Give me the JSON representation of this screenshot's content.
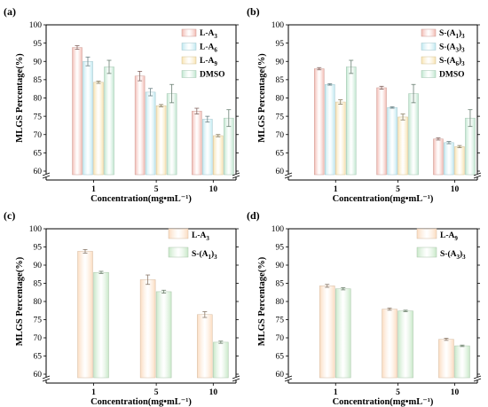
{
  "chart_data": [
    {
      "panel": "(a)",
      "type": "bar",
      "categories": [
        "1",
        "5",
        "10"
      ],
      "series": [
        {
          "name": "L-A",
          "sub": "3",
          "color": "#f2b9b1",
          "values": [
            93.8,
            86.0,
            76.4
          ],
          "errors": [
            0.5,
            1.3,
            0.8
          ]
        },
        {
          "name": "L-A",
          "sub": "6",
          "color": "#bfe8f0",
          "values": [
            90.0,
            81.6,
            74.2
          ],
          "errors": [
            1.2,
            1.0,
            0.8
          ]
        },
        {
          "name": "L-A",
          "sub": "9",
          "color": "#f8e3b0",
          "values": [
            84.3,
            77.9,
            69.7
          ],
          "errors": [
            0.3,
            0.3,
            0.3
          ]
        },
        {
          "name": "DMSO",
          "sub": "",
          "color": "#bfe6cf",
          "values": [
            88.5,
            81.2,
            74.5
          ],
          "errors": [
            1.8,
            2.5,
            2.3
          ]
        }
      ],
      "xlabel": "Concentration(mg•mL⁻¹)",
      "ylabel": "MLGS Percentage(%)",
      "ylim": [
        60,
        100
      ],
      "yticks": [
        "60",
        "65",
        "70",
        "75",
        "80",
        "85",
        "90",
        "95",
        "100"
      ]
    },
    {
      "panel": "(b)",
      "type": "bar",
      "categories": [
        "1",
        "5",
        "10"
      ],
      "series": [
        {
          "name": "S-(A",
          "sub": "1",
          "suffix": ")",
          "sub2": "3",
          "color": "#f2b9b1",
          "values": [
            88.0,
            82.8,
            68.8
          ],
          "errors": [
            0.3,
            0.4,
            0.3
          ]
        },
        {
          "name": "S-(A",
          "sub": "3",
          "suffix": ")",
          "sub2": "3",
          "color": "#bfe8f0",
          "values": [
            83.7,
            77.4,
            67.8
          ],
          "errors": [
            0.2,
            0.2,
            0.3
          ]
        },
        {
          "name": "S-(A",
          "sub": "6",
          "suffix": ")",
          "sub2": "3",
          "color": "#f8e3b0",
          "values": [
            78.9,
            74.8,
            66.7
          ],
          "errors": [
            0.6,
            0.8,
            0.3
          ]
        },
        {
          "name": "DMSO",
          "sub": "",
          "color": "#bfe6cf",
          "values": [
            88.5,
            81.2,
            74.5
          ],
          "errors": [
            1.8,
            2.5,
            2.3
          ]
        }
      ],
      "xlabel": "Concentration(mg•mL⁻¹)",
      "ylabel": "MLGS Percentage(%)",
      "ylim": [
        60,
        100
      ],
      "yticks": [
        "60",
        "65",
        "70",
        "75",
        "80",
        "85",
        "90",
        "95",
        "100"
      ]
    },
    {
      "panel": "(c)",
      "type": "bar",
      "categories": [
        "1",
        "5",
        "10"
      ],
      "series": [
        {
          "name": "L-A",
          "sub": "3",
          "color": "#fbdcc0",
          "values": [
            93.8,
            86.0,
            76.4
          ],
          "errors": [
            0.5,
            1.3,
            0.8
          ]
        },
        {
          "name": "S-(A",
          "sub": "1",
          "suffix": ")",
          "sub2": "3",
          "color": "#c8e8c8",
          "values": [
            88.0,
            82.7,
            68.8
          ],
          "errors": [
            0.3,
            0.4,
            0.3
          ]
        }
      ],
      "xlabel": "Concentration(mg•mL⁻¹)",
      "ylabel": "MLGS Percentage(%)",
      "ylim": [
        60,
        100
      ],
      "yticks": [
        "60",
        "65",
        "70",
        "75",
        "80",
        "85",
        "90",
        "95",
        "100"
      ]
    },
    {
      "panel": "(d)",
      "type": "bar",
      "categories": [
        "1",
        "5",
        "10"
      ],
      "series": [
        {
          "name": "L-A",
          "sub": "9",
          "color": "#fbdcc0",
          "values": [
            84.3,
            77.9,
            69.6
          ],
          "errors": [
            0.4,
            0.3,
            0.3
          ]
        },
        {
          "name": "S-(A",
          "sub": "3",
          "suffix": ")",
          "sub2": "3",
          "color": "#c8e8c8",
          "values": [
            83.5,
            77.4,
            67.8
          ],
          "errors": [
            0.3,
            0.2,
            0.2
          ]
        }
      ],
      "xlabel": "Concentration(mg•mL⁻¹)",
      "ylabel": "MLGS Percentage(%)",
      "ylim": [
        60,
        100
      ],
      "yticks": [
        "60",
        "65",
        "70",
        "75",
        "80",
        "85",
        "90",
        "95",
        "100"
      ]
    }
  ]
}
